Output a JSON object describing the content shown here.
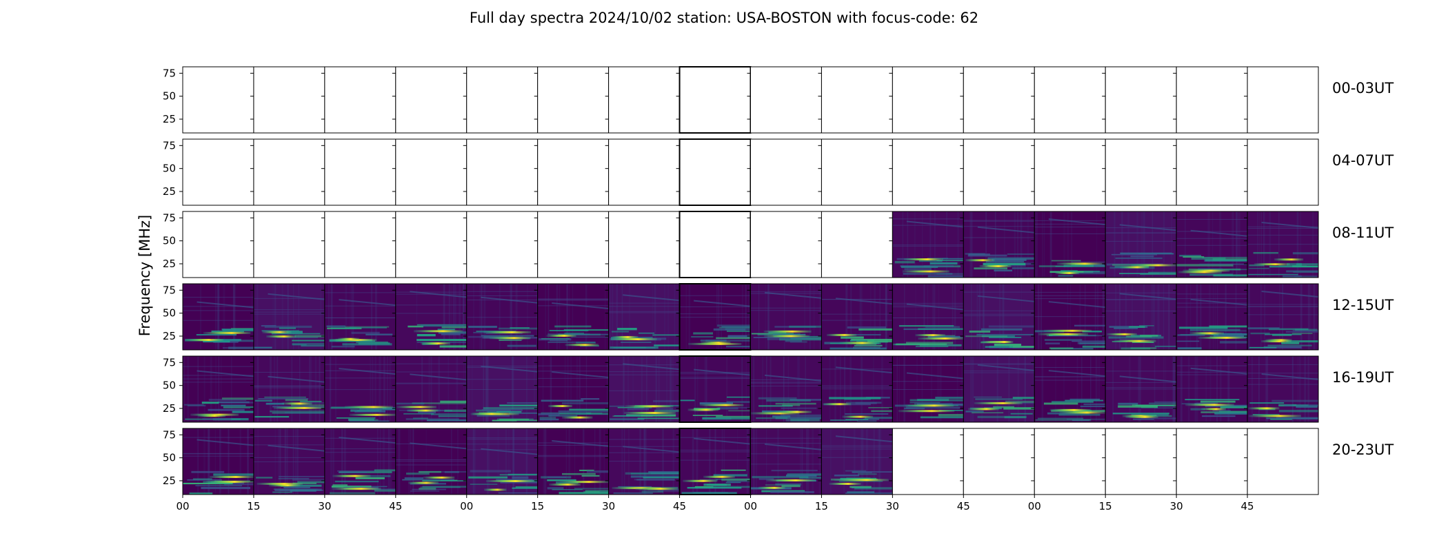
{
  "chart_data": {
    "type": "heatmap",
    "title": "Full day spectra 2024/10/02 station: USA-BOSTON with focus-code: 62",
    "ylabel": "Frequency [MHz]",
    "y_ticks": [
      "75",
      "50",
      "25"
    ],
    "y_tick_values": [
      75,
      50,
      25
    ],
    "ylim": [
      10,
      82
    ],
    "x_tick_labels": [
      "00",
      "15",
      "30",
      "45",
      "00",
      "15",
      "30",
      "45",
      "00",
      "15",
      "30",
      "45",
      "00",
      "15",
      "30",
      "45"
    ],
    "panels_per_row": 16,
    "colormap": "viridis",
    "rows": [
      {
        "label": "00-03UT",
        "filled": []
      },
      {
        "label": "04-07UT",
        "filled": []
      },
      {
        "label": "08-11UT",
        "filled": [
          10,
          11,
          12,
          13,
          14,
          15
        ]
      },
      {
        "label": "12-15UT",
        "filled": [
          0,
          1,
          2,
          3,
          4,
          5,
          6,
          7,
          8,
          9,
          10,
          11,
          12,
          13,
          14,
          15
        ]
      },
      {
        "label": "16-19UT",
        "filled": [
          0,
          1,
          2,
          3,
          4,
          5,
          6,
          7,
          8,
          9,
          10,
          11,
          12,
          13,
          14,
          15
        ]
      },
      {
        "label": "20-23UT",
        "filled": [
          0,
          1,
          2,
          3,
          4,
          5,
          6,
          7,
          8,
          9
        ]
      }
    ]
  }
}
